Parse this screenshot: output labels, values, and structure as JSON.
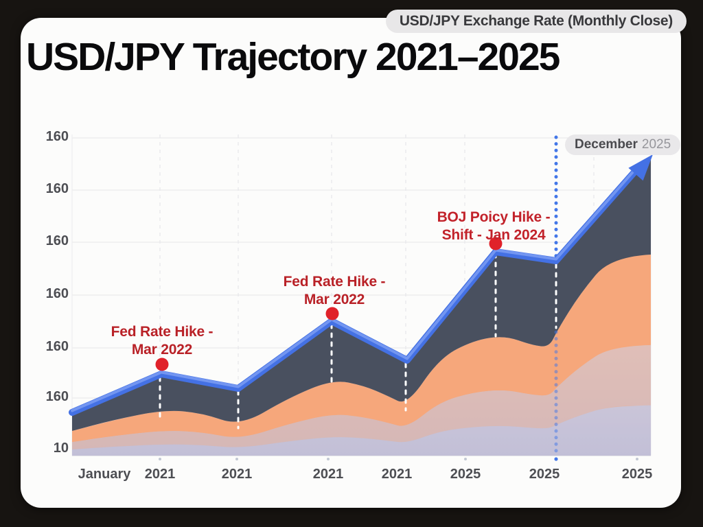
{
  "header": {
    "badge": "USD/JPY Exchange Rate (Monthly Close)"
  },
  "title": "USD/JPY Trajectory 2021–2025",
  "chart_data": {
    "type": "area",
    "title": "USD/JPY Trajectory 2021–2025",
    "subtitle": "USD/JPY Exchange Rate (Monthly Close)",
    "grid": true,
    "legend": false,
    "y_tick_labels": [
      "160",
      "160",
      "160",
      "160",
      "160",
      "160",
      "10"
    ],
    "x_tick_labels": [
      "January",
      "2021",
      "2021",
      "2021",
      "2021",
      "2025",
      "2025",
      "2025"
    ],
    "series": [
      {
        "name": "USD/JPY monthly close (blue trend line, ends in arrow)",
        "color": "#4472e4",
        "est_values": [
          108,
          116,
          113,
          125,
          118,
          138,
          137,
          156
        ]
      },
      {
        "name": "inner shadow band top edge (orange area boundary)",
        "color": "#f6a77b",
        "est_values": [
          105,
          109,
          106,
          114,
          109,
          123,
          121,
          124,
          137
        ]
      }
    ],
    "annotations": [
      {
        "line1": "Fed Rate Hike -",
        "line2": "Mar 2022",
        "color": "#b92127"
      },
      {
        "line1": "Fed Rate Hike -",
        "line2": "Mar 2022",
        "color": "#b92127"
      },
      {
        "line1": "BOJ Poicy Hike -",
        "line2": "Shift - Jan 2024",
        "color": "#c2222a"
      }
    ],
    "callout": {
      "bold": "December",
      "muted": "2025"
    },
    "marker_color": "#e0222a",
    "note": "y-axis tick labels repeat '160' exactly as rendered in the source image"
  }
}
